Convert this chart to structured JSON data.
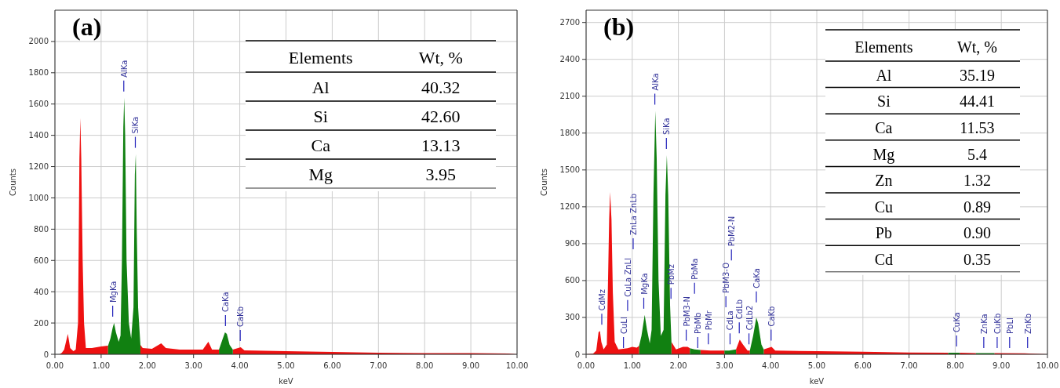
{
  "chart_data": [
    {
      "type": "area",
      "title": "(a)",
      "xlabel": "keV",
      "ylabel": "Counts",
      "xlim": [
        0,
        10
      ],
      "ylim": [
        0,
        2200
      ],
      "xticks": [
        {
          "value": 0,
          "label": "0.00"
        },
        {
          "value": 1,
          "label": "1.00"
        },
        {
          "value": 2,
          "label": "2.00"
        },
        {
          "value": 3,
          "label": "3.00"
        },
        {
          "value": 4,
          "label": "4.00"
        },
        {
          "value": 5,
          "label": "5.00"
        },
        {
          "value": 6,
          "label": "6.00"
        },
        {
          "value": 7,
          "label": "7.00"
        },
        {
          "value": 8,
          "label": "8.00"
        },
        {
          "value": 9,
          "label": "9.00"
        },
        {
          "value": 10,
          "label": "10.00"
        }
      ],
      "yticks": [
        0,
        200,
        400,
        600,
        800,
        1000,
        1200,
        1400,
        1600,
        1800,
        2000
      ],
      "grid": true,
      "series": [
        {
          "color": "#ee1111",
          "x": [
            0,
            0.1,
            0.15,
            0.2,
            0.28,
            0.33,
            0.4,
            0.45,
            0.5,
            0.53,
            0.55,
            0.57,
            0.6,
            0.63,
            0.67,
            0.8,
            1.0,
            1.15,
            1.5,
            1.85,
            1.9,
            2.1,
            2.3,
            2.4,
            2.7,
            3.0,
            3.2,
            3.32,
            3.4,
            3.55,
            3.7,
            3.85,
            4.02,
            4.1,
            5,
            6,
            7,
            8,
            9,
            9.8,
            10
          ],
          "values": [
            0,
            0,
            10,
            30,
            130,
            40,
            20,
            30,
            200,
            1250,
            1510,
            1250,
            600,
            200,
            40,
            40,
            50,
            55,
            null,
            60,
            40,
            35,
            70,
            40,
            30,
            30,
            30,
            80,
            30,
            30,
            null,
            30,
            45,
            25,
            20,
            15,
            10,
            8,
            7,
            5,
            0
          ]
        },
        {
          "color": "#118011",
          "x": [
            1.15,
            1.2,
            1.25,
            1.28,
            1.32,
            1.38,
            1.42,
            1.45,
            1.48,
            1.5,
            1.52,
            1.55,
            1.6,
            1.65,
            1.7,
            1.73,
            1.75,
            1.77,
            1.8,
            1.85,
            2.5,
            3.55,
            3.62,
            3.68,
            3.72,
            3.78,
            3.85
          ],
          "values": [
            55,
            100,
            170,
            200,
            140,
            80,
            120,
            600,
            1450,
            1640,
            1400,
            600,
            200,
            100,
            300,
            1150,
            1280,
            800,
            300,
            60,
            null,
            30,
            90,
            140,
            130,
            60,
            30
          ]
        }
      ],
      "ref_lines": [
        {
          "axis": "x",
          "value": 1.25,
          "label": "MgKa"
        },
        {
          "axis": "x",
          "value": 1.49,
          "label": "AlKa"
        },
        {
          "axis": "x",
          "value": 1.74,
          "label": "SiKa"
        },
        {
          "axis": "x",
          "value": 3.69,
          "label": "CaKa"
        },
        {
          "axis": "x",
          "value": 4.01,
          "label": "CaKb"
        }
      ]
    },
    {
      "type": "other",
      "xlabel": "Elements",
      "ylabel": "Wt, %",
      "categories": [
        "Al",
        "Si",
        "Ca",
        "Mg"
      ],
      "values": [
        40.32,
        42.6,
        13.13,
        3.95
      ],
      "value_labels": [
        "40.32",
        "42.60",
        "13.13",
        "3.95"
      ]
    },
    {
      "type": "area",
      "title": "(b)",
      "xlabel": "keV",
      "ylabel": "Counts",
      "xlim": [
        0,
        10
      ],
      "ylim": [
        0,
        2800
      ],
      "xticks": [
        {
          "value": 0,
          "label": "0.00"
        },
        {
          "value": 1,
          "label": "1.00"
        },
        {
          "value": 2,
          "label": "2.00"
        },
        {
          "value": 3,
          "label": "3.00"
        },
        {
          "value": 4,
          "label": "4.00"
        },
        {
          "value": 5,
          "label": "5.00"
        },
        {
          "value": 6,
          "label": "6.00"
        },
        {
          "value": 7,
          "label": "7.00"
        },
        {
          "value": 8,
          "label": "8.00"
        },
        {
          "value": 9,
          "label": "9.00"
        },
        {
          "value": 10,
          "label": "10.00"
        }
      ],
      "yticks": [
        0,
        300,
        600,
        900,
        1200,
        1500,
        1800,
        2100,
        2400,
        2700
      ],
      "grid": true,
      "series": [
        {
          "color": "#ee1111",
          "x": [
            0,
            0.15,
            0.22,
            0.27,
            0.3,
            0.33,
            0.38,
            0.45,
            0.5,
            0.52,
            0.55,
            0.58,
            0.62,
            0.7,
            0.9,
            1.0,
            1.1,
            1.15,
            1.5,
            1.85,
            1.95,
            2.1,
            2.2,
            2.25,
            2.35,
            2.48,
            2.7,
            3.0,
            3.1,
            3.25,
            3.33,
            3.4,
            3.5,
            3.55,
            3.7,
            3.85,
            4.02,
            4.1,
            5,
            6,
            7,
            7.85,
            8.0,
            8.1,
            8.45,
            8.6,
            8.85,
            9.5,
            10
          ],
          "values": [
            0,
            5,
            30,
            180,
            190,
            100,
            40,
            80,
            1100,
            1320,
            1100,
            500,
            100,
            40,
            50,
            60,
            55,
            70,
            null,
            100,
            40,
            60,
            60,
            50,
            null,
            35,
            30,
            30,
            null,
            40,
            120,
            80,
            30,
            30,
            null,
            40,
            60,
            30,
            25,
            20,
            15,
            12,
            null,
            12,
            10,
            null,
            10,
            8,
            0
          ]
        },
        {
          "color": "#118011",
          "x": [
            1.15,
            1.2,
            1.27,
            1.32,
            1.38,
            1.42,
            1.46,
            1.5,
            1.53,
            1.57,
            1.62,
            1.68,
            1.72,
            1.75,
            1.78,
            1.82,
            1.85,
            2.0,
            2.25,
            2.35,
            2.48,
            2.7,
            3.0,
            3.1,
            3.25,
            3.4,
            3.55,
            3.62,
            3.69,
            3.73,
            3.8,
            3.85,
            6,
            7.85,
            8.0,
            8.1,
            8.3,
            8.45,
            8.85
          ],
          "values": [
            70,
            150,
            320,
            200,
            90,
            200,
            1300,
            1980,
            1600,
            600,
            150,
            200,
            1300,
            1620,
            1300,
            400,
            100,
            null,
            50,
            40,
            35,
            null,
            30,
            30,
            40,
            null,
            30,
            150,
            300,
            250,
            80,
            40,
            null,
            12,
            12,
            12,
            null,
            10,
            10
          ]
        }
      ],
      "ref_lines": [
        {
          "axis": "x",
          "value": 0.34,
          "label": "CdMz"
        },
        {
          "axis": "x",
          "value": 0.81,
          "label": "CuLl"
        },
        {
          "axis": "x",
          "value": 0.9,
          "label": "CuLa ZnLl"
        },
        {
          "axis": "x",
          "value": 1.02,
          "label": "ZnLa ZnLb"
        },
        {
          "axis": "x",
          "value": 1.25,
          "label": "MgKa"
        },
        {
          "axis": "x",
          "value": 1.49,
          "label": "AlKa"
        },
        {
          "axis": "x",
          "value": 1.74,
          "label": "SiKa"
        },
        {
          "axis": "x",
          "value": 1.84,
          "label": "PbMz"
        },
        {
          "axis": "x",
          "value": 2.17,
          "label": "PbM3-N"
        },
        {
          "axis": "x",
          "value": 2.42,
          "label": "PbMb"
        },
        {
          "axis": "x",
          "value": 2.35,
          "label": "PbMa"
        },
        {
          "axis": "x",
          "value": 2.65,
          "label": "PbMr"
        },
        {
          "axis": "x",
          "value": 3.12,
          "label": "CdLa"
        },
        {
          "axis": "x",
          "value": 3.03,
          "label": "PbM3-O"
        },
        {
          "axis": "x",
          "value": 3.15,
          "label": "PbM2-N"
        },
        {
          "axis": "x",
          "value": 3.32,
          "label": "CdLb"
        },
        {
          "axis": "x",
          "value": 3.53,
          "label": "CdLb2"
        },
        {
          "axis": "x",
          "value": 3.69,
          "label": "CaKa"
        },
        {
          "axis": "x",
          "value": 4.01,
          "label": "CaKb"
        },
        {
          "axis": "x",
          "value": 8.03,
          "label": "CuKa"
        },
        {
          "axis": "x",
          "value": 8.62,
          "label": "ZnKa"
        },
        {
          "axis": "x",
          "value": 8.91,
          "label": "CuKb"
        },
        {
          "axis": "x",
          "value": 9.18,
          "label": "PbLl"
        },
        {
          "axis": "x",
          "value": 9.57,
          "label": "ZnKb"
        }
      ]
    },
    {
      "type": "other",
      "xlabel": "Elements",
      "ylabel": "Wt, %",
      "categories": [
        "Al",
        "Si",
        "Ca",
        "Mg",
        "Zn",
        "Cu",
        "Pb",
        "Cd"
      ],
      "values": [
        35.19,
        44.41,
        11.53,
        5.4,
        1.32,
        0.89,
        0.9,
        0.35
      ],
      "value_labels": [
        "35.19",
        "44.41",
        "11.53",
        "5.4",
        "1.32",
        "0.89",
        "0.90",
        "0.35"
      ]
    }
  ]
}
